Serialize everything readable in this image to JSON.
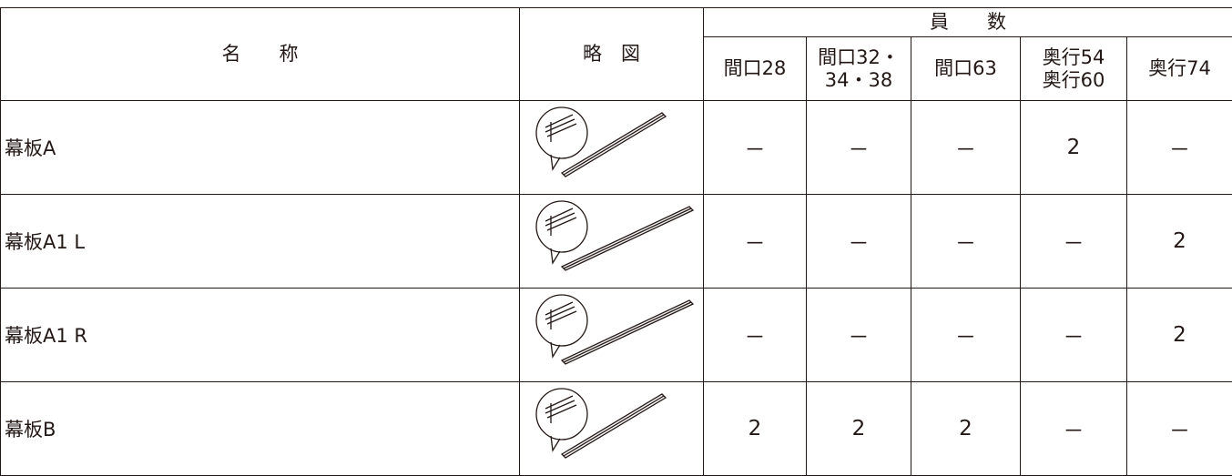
{
  "table": {
    "header": {
      "name": "名　　称",
      "sketch": "略　図",
      "group": "員　　数",
      "columns": [
        [
          "間口28"
        ],
        [
          "間口32・",
          "34・38"
        ],
        [
          "間口63"
        ],
        [
          "奥行54",
          "奥行60"
        ],
        [
          "奥行74"
        ]
      ]
    },
    "rows": [
      {
        "name": "幕板A",
        "counts": [
          "－",
          "－",
          "－",
          2,
          "－"
        ]
      },
      {
        "name": "幕板A1 L",
        "counts": [
          "－",
          "－",
          "－",
          "－",
          2
        ]
      },
      {
        "name": "幕板A1 R",
        "counts": [
          "－",
          "－",
          "－",
          "－",
          2
        ]
      },
      {
        "name": "幕板B",
        "counts": [
          2,
          2,
          2,
          "－",
          "－"
        ]
      }
    ]
  }
}
